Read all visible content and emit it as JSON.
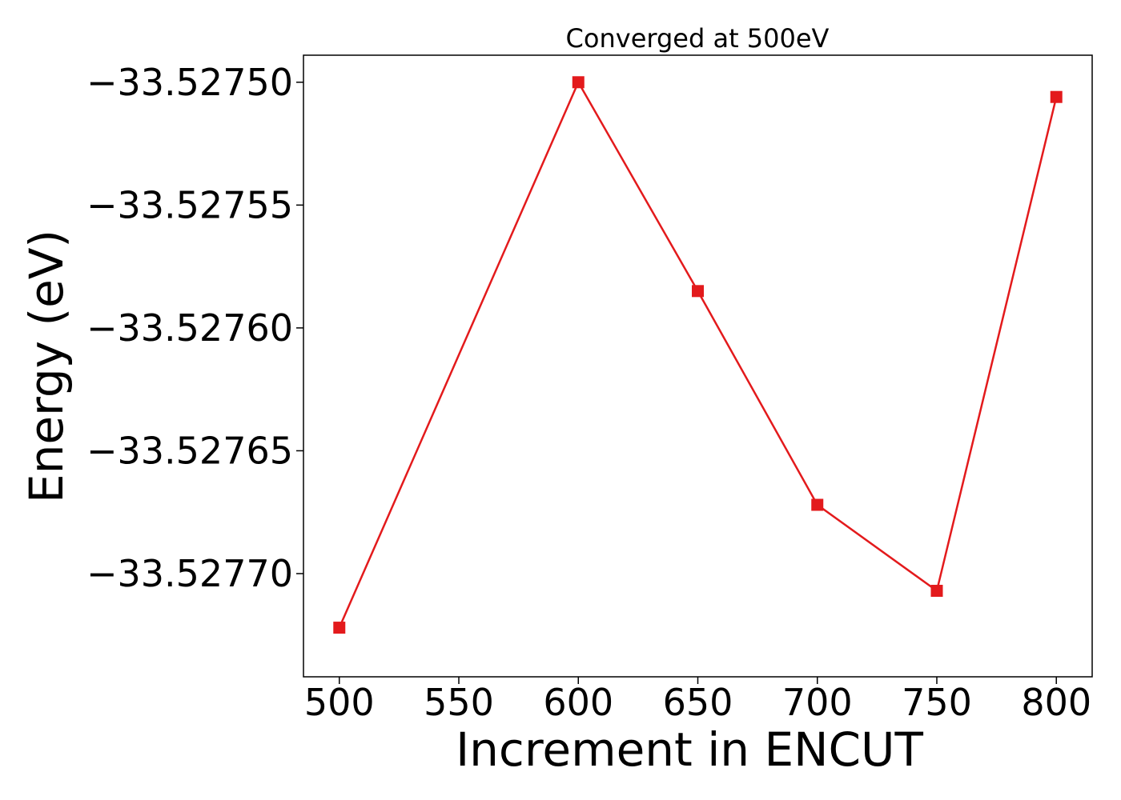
{
  "chart_data": {
    "type": "line",
    "title": "Converged at 500eV",
    "xlabel": "Increment in ENCUT",
    "ylabel": "Energy (eV)",
    "x": [
      500,
      600,
      650,
      700,
      750,
      800
    ],
    "series": [
      {
        "values": [
          -33.527722,
          -33.5275,
          -33.527585,
          -33.527672,
          -33.527707,
          -33.527506
        ],
        "color": "#e31a1c",
        "marker": "square"
      }
    ],
    "xticks": [
      500,
      550,
      600,
      650,
      700,
      750,
      800
    ],
    "xtick_labels": [
      "500",
      "550",
      "600",
      "650",
      "700",
      "750",
      "800"
    ],
    "yticks": [
      -33.5277,
      -33.52765,
      -33.5276,
      -33.52755,
      -33.5275
    ],
    "ytick_labels": [
      "−33.52770",
      "−33.52765",
      "−33.52760",
      "−33.52755",
      "−33.52750"
    ],
    "xlim": [
      485,
      815
    ],
    "ylim": [
      -33.527742,
      -33.527489
    ],
    "grid": false,
    "legend": false
  }
}
